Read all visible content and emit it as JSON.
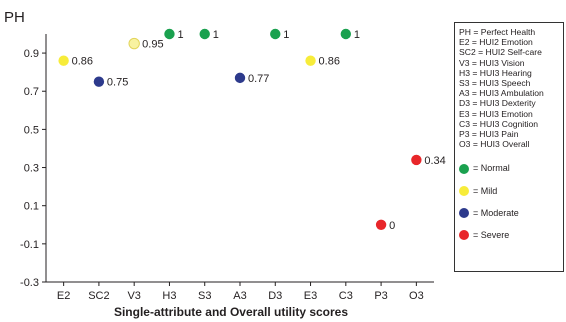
{
  "chart_data": {
    "type": "scatter",
    "title": "",
    "ylabel": "PH",
    "xlabel": "Single-attribute and Overall utility scores",
    "categories": [
      "E2",
      "SC2",
      "V3",
      "H3",
      "S3",
      "A3",
      "D3",
      "E3",
      "C3",
      "P3",
      "O3"
    ],
    "values": [
      0.86,
      0.75,
      0.95,
      1,
      1,
      0.77,
      1,
      0.86,
      1,
      0,
      0.34
    ],
    "value_labels": [
      "0.86",
      "0.75",
      "0.95",
      "1",
      "1",
      "0.77",
      "1",
      "0.86",
      "1",
      "0",
      "0.34"
    ],
    "severity": [
      "mild",
      "moderate",
      "mild",
      "normal",
      "normal",
      "moderate",
      "normal",
      "mild",
      "normal",
      "severe",
      "severe"
    ],
    "ylim": [
      -0.3,
      1.0
    ],
    "yticks": [
      "0.9",
      "0.7",
      "0.5",
      "0.3",
      "0.1",
      "-0.1",
      "-0.3"
    ],
    "ytick_values": [
      0.9,
      0.7,
      0.5,
      0.3,
      0.1,
      -0.1,
      -0.3
    ],
    "grid": false,
    "legend_position": "right",
    "colors": {
      "normal": "#1aa14f",
      "mild": "#f7ec3a",
      "mild_light": "#f8f2a0",
      "moderate": "#2d3a8c",
      "severe": "#e8262a"
    }
  },
  "legend": {
    "abbreviations": [
      "PH = Perfect Health",
      "E2 = HUI2 Emotion",
      "SC2 = HUI2 Self-care",
      "V3 = HUI3 Vision",
      "H3 = HUI3 Hearing",
      "S3 = HUI3 Speech",
      "A3 = HUI3 Ambulation",
      "D3 = HUI3 Dexterity",
      "E3 = HUI3 Emotion",
      "C3 = HUI3 Cognition",
      "P3 = HUI3 Pain",
      "O3 = HUI3 Overall"
    ],
    "severity_items": [
      {
        "key": "normal",
        "label": "= Normal"
      },
      {
        "key": "mild",
        "label": "= Mild"
      },
      {
        "key": "moderate",
        "label": "= Moderate"
      },
      {
        "key": "severe",
        "label": "= Severe"
      }
    ]
  }
}
